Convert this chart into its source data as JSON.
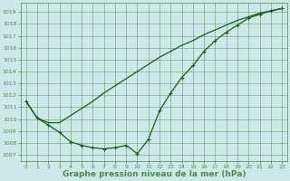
{
  "bg_color": "#cce8e8",
  "grid_color": "#4a8a4a",
  "line_color1": "#1a5c1a",
  "line_color2": "#1a5c1a",
  "marker_color": "#1a5c1a",
  "xlabel": "Graphe pression niveau de la mer (hPa)",
  "xlabel_fontsize": 6.5,
  "ylim": [
    1006.5,
    1019.8
  ],
  "xlim": [
    -0.5,
    23.5
  ],
  "yticks": [
    1007,
    1008,
    1009,
    1010,
    1011,
    1012,
    1013,
    1014,
    1015,
    1016,
    1017,
    1018,
    1019
  ],
  "xticks": [
    0,
    1,
    2,
    3,
    4,
    5,
    6,
    7,
    8,
    9,
    10,
    11,
    12,
    13,
    14,
    15,
    16,
    17,
    18,
    19,
    20,
    21,
    22,
    23
  ],
  "series1_x": [
    0,
    1,
    2,
    3,
    4,
    5,
    6,
    7,
    8,
    9,
    10,
    11,
    12,
    13,
    14,
    15,
    16,
    17,
    18,
    19,
    20,
    21,
    22,
    23
  ],
  "series1_y": [
    1011.5,
    1010.1,
    1009.7,
    1009.7,
    1010.3,
    1010.9,
    1011.5,
    1012.2,
    1012.8,
    1013.4,
    1014.0,
    1014.6,
    1015.2,
    1015.7,
    1016.2,
    1016.6,
    1017.1,
    1017.5,
    1017.9,
    1018.3,
    1018.6,
    1018.9,
    1019.1,
    1019.3
  ],
  "series2_x": [
    0,
    1,
    2,
    3,
    4,
    5,
    6,
    7,
    8,
    9,
    10,
    11,
    12,
    13,
    14,
    15,
    16,
    17,
    18,
    19,
    20,
    21,
    22,
    23
  ],
  "series2_y": [
    1011.5,
    1010.1,
    1009.5,
    1008.9,
    1008.1,
    1007.8,
    1007.6,
    1007.5,
    1007.6,
    1007.8,
    1007.1,
    1008.3,
    1010.7,
    1012.2,
    1013.5,
    1014.5,
    1015.7,
    1016.6,
    1017.3,
    1017.9,
    1018.5,
    1018.8,
    1019.1,
    1019.3
  ]
}
